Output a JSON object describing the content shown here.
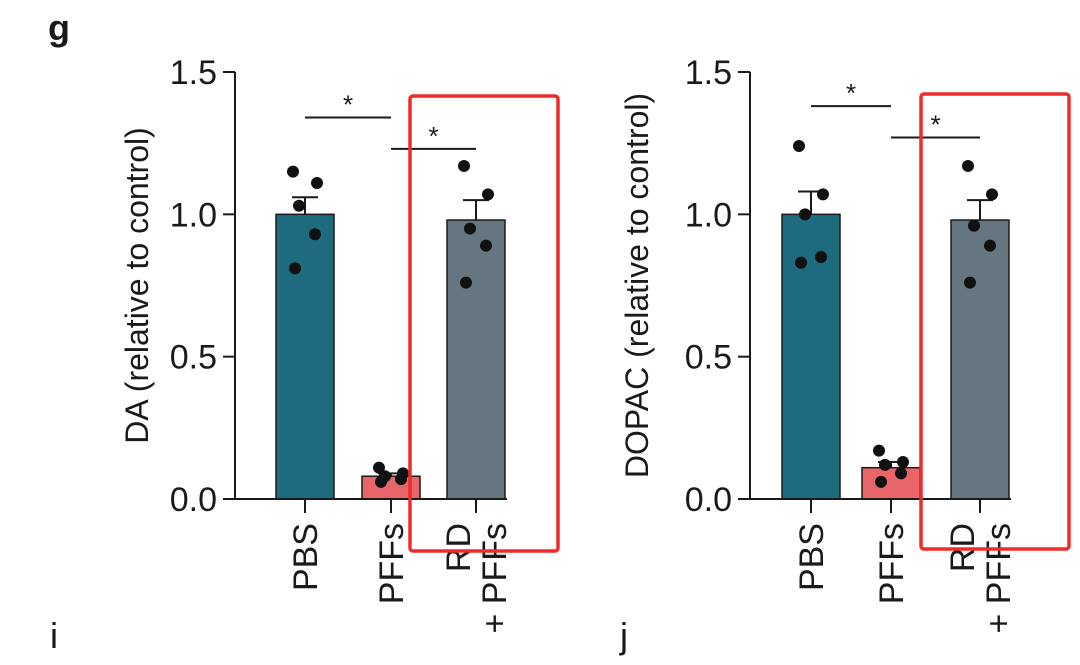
{
  "panel_labels": [
    "g",
    "i",
    "j"
  ],
  "colors": {
    "PBS": "#1e6a7e",
    "PFFs": "#e8666a",
    "RD + PFFs": "#657681",
    "highlight": "#ee2c2c",
    "axis": "#1a1a1a"
  },
  "chart_data": [
    {
      "type": "bar",
      "title": "",
      "xlabel": "",
      "ylabel": "DA (relative to control)",
      "ylim": [
        0,
        1.5
      ],
      "yticks": [
        "0.0",
        "0.5",
        "1.0",
        "1.5"
      ],
      "categories": [
        {
          "lines": [
            "PBS"
          ]
        },
        {
          "lines": [
            "PFFs"
          ]
        },
        {
          "lines": [
            "RD",
            "+ PFFs"
          ]
        }
      ],
      "values": [
        1.0,
        0.08,
        0.98
      ],
      "sem": [
        0.06,
        0.01,
        0.07
      ],
      "points": [
        [
          1.15,
          1.11,
          1.03,
          0.93,
          0.81
        ],
        [
          0.11,
          0.09,
          0.08,
          0.07,
          0.06
        ],
        [
          1.17,
          1.07,
          0.95,
          0.89,
          0.76
        ]
      ],
      "significance": [
        {
          "from": 0,
          "to": 1,
          "label": "*",
          "y": 1.34
        },
        {
          "from": 1,
          "to": 2,
          "label": "*",
          "y": 1.23
        }
      ],
      "highlight": {
        "from_category": 2,
        "color": "#ee2c2c"
      }
    },
    {
      "type": "bar",
      "title": "",
      "xlabel": "",
      "ylabel": "DOPAC (relative to control)",
      "ylim": [
        0,
        1.5
      ],
      "yticks": [
        "0.0",
        "0.5",
        "1.0",
        "1.5"
      ],
      "categories": [
        {
          "lines": [
            "PBS"
          ]
        },
        {
          "lines": [
            "PFFs"
          ]
        },
        {
          "lines": [
            "RD",
            "+ PFFs"
          ]
        }
      ],
      "values": [
        1.0,
        0.11,
        0.98
      ],
      "sem": [
        0.08,
        0.02,
        0.07
      ],
      "points": [
        [
          1.24,
          1.07,
          1.0,
          0.85,
          0.83
        ],
        [
          0.17,
          0.13,
          0.12,
          0.09,
          0.06
        ],
        [
          1.17,
          1.07,
          0.96,
          0.89,
          0.76
        ]
      ],
      "significance": [
        {
          "from": 0,
          "to": 1,
          "label": "*",
          "y": 1.38
        },
        {
          "from": 1,
          "to": 2,
          "label": "*",
          "y": 1.27
        }
      ],
      "highlight": {
        "from_category": 2,
        "color": "#ee2c2c"
      }
    }
  ]
}
